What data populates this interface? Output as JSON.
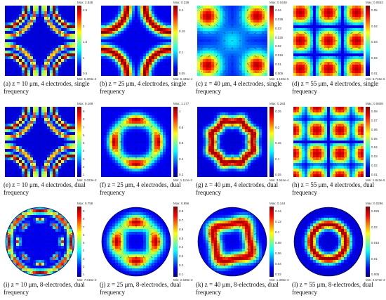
{
  "figure": {
    "panels": [
      {
        "caption": "(a) z = 10 μm, 4 electrodes, single frequency",
        "max": "Max: 2.828",
        "min": "Min: 6.203e-4",
        "ticks": [
          "2.5",
          "2",
          "1.5",
          "1",
          "0.5"
        ],
        "shape": "square",
        "pattern": "a"
      },
      {
        "caption": "(b) z = 25 μm, 4 electrodes, single frequency",
        "max": "Max: 0.239",
        "min": "Min: 5.445e-4",
        "ticks": [
          "0.2",
          "0.15",
          "0.1",
          "0.05"
        ],
        "shape": "square",
        "pattern": "b"
      },
      {
        "caption": "(c) z = 40 μm, 4 electrodes, single frequency",
        "max": "Max: 0.0448",
        "min": "Min: 4.183e-5",
        "ticks": [
          "0.04",
          "0.035",
          "0.03",
          "0.025",
          "0.02",
          "0.015",
          "0.01",
          "0.005"
        ],
        "shape": "square",
        "pattern": "c"
      },
      {
        "caption": "(d) z = 55 μm, 4 electrodes, single frequency",
        "max": "Max: 0.0553",
        "min": "Min: 5.746e-6",
        "ticks": [
          "0.05",
          "0.04",
          "0.03",
          "0.02",
          "0.01"
        ],
        "shape": "square",
        "pattern": "d"
      },
      {
        "caption": "(e) z = 10 μm, 4 electrodes, dual frequency",
        "max": "Max: 9.169",
        "min": "Min: 2.023e-3",
        "ticks": [
          "9",
          "8",
          "7",
          "6",
          "5",
          "4",
          "3",
          "2",
          "1"
        ],
        "shape": "square",
        "pattern": "a"
      },
      {
        "caption": "(f) z = 25 μm, 4 electrodes, dual frequency",
        "max": "Max: 1.177",
        "min": "Min: 1.111e-3",
        "ticks": [
          "1",
          "0.8",
          "0.6",
          "0.4",
          "0.2"
        ],
        "shape": "square",
        "pattern": "f"
      },
      {
        "caption": "(g) z = 40 μm, 4 electrodes, dual frequency",
        "max": "Max: 0.283",
        "min": "Min: 3.644e-4",
        "ticks": [
          "0.25",
          "0.2",
          "0.15",
          "0.1",
          "0.05"
        ],
        "shape": "square",
        "pattern": "g"
      },
      {
        "caption": "(h) z = 55 μm, 4 electrodes, dual frequency",
        "max": "Max: 0.0808",
        "min": "Min: 1.843e-5",
        "ticks": [
          "0.08",
          "0.07",
          "0.06",
          "0.05",
          "0.04",
          "0.03",
          "0.02",
          "0.01"
        ],
        "shape": "square",
        "pattern": "h"
      },
      {
        "caption": "(i) z = 10 μm, 8-electrodes, dual frequency",
        "max": "Max: 9.759",
        "min": "Min: 7.015e-3",
        "ticks": [
          "9",
          "8",
          "7",
          "6",
          "5",
          "4",
          "3",
          "2",
          "1"
        ],
        "shape": "circle",
        "pattern": "i"
      },
      {
        "caption": "(j) z = 25 μm, 8-electrodes, dual frequency",
        "max": "Max: 0.856",
        "min": "Min: 2.639e-3",
        "ticks": [
          "0.8",
          "0.7",
          "0.6",
          "0.5",
          "0.4",
          "0.3",
          "0.2",
          "0.1"
        ],
        "shape": "circle",
        "pattern": "j"
      },
      {
        "caption": "(k) z = 40 μm, 8-electrodes, dual frequency",
        "max": "Max: 0.144",
        "min": "Min: 1.306e-3",
        "ticks": [
          "0.14",
          "0.12",
          "0.1",
          "0.08",
          "0.06",
          "0.04",
          "0.02"
        ],
        "shape": "circle",
        "pattern": "k"
      },
      {
        "caption": "(l) z = 55 μm, 8-electrodes, dual frequency",
        "max": "Max: 0.0296",
        "min": "Min: 2.573e-4",
        "ticks": [
          "0.025",
          "0.02",
          "0.015",
          "0.01",
          "0.005"
        ],
        "shape": "circle",
        "pattern": "l"
      }
    ],
    "colors": {
      "dark_blue": "#00008f",
      "blue": "#0000ff",
      "cyan": "#00ffff",
      "yellow": "#ffff00",
      "red": "#ff0000",
      "dark_red": "#800000"
    }
  }
}
